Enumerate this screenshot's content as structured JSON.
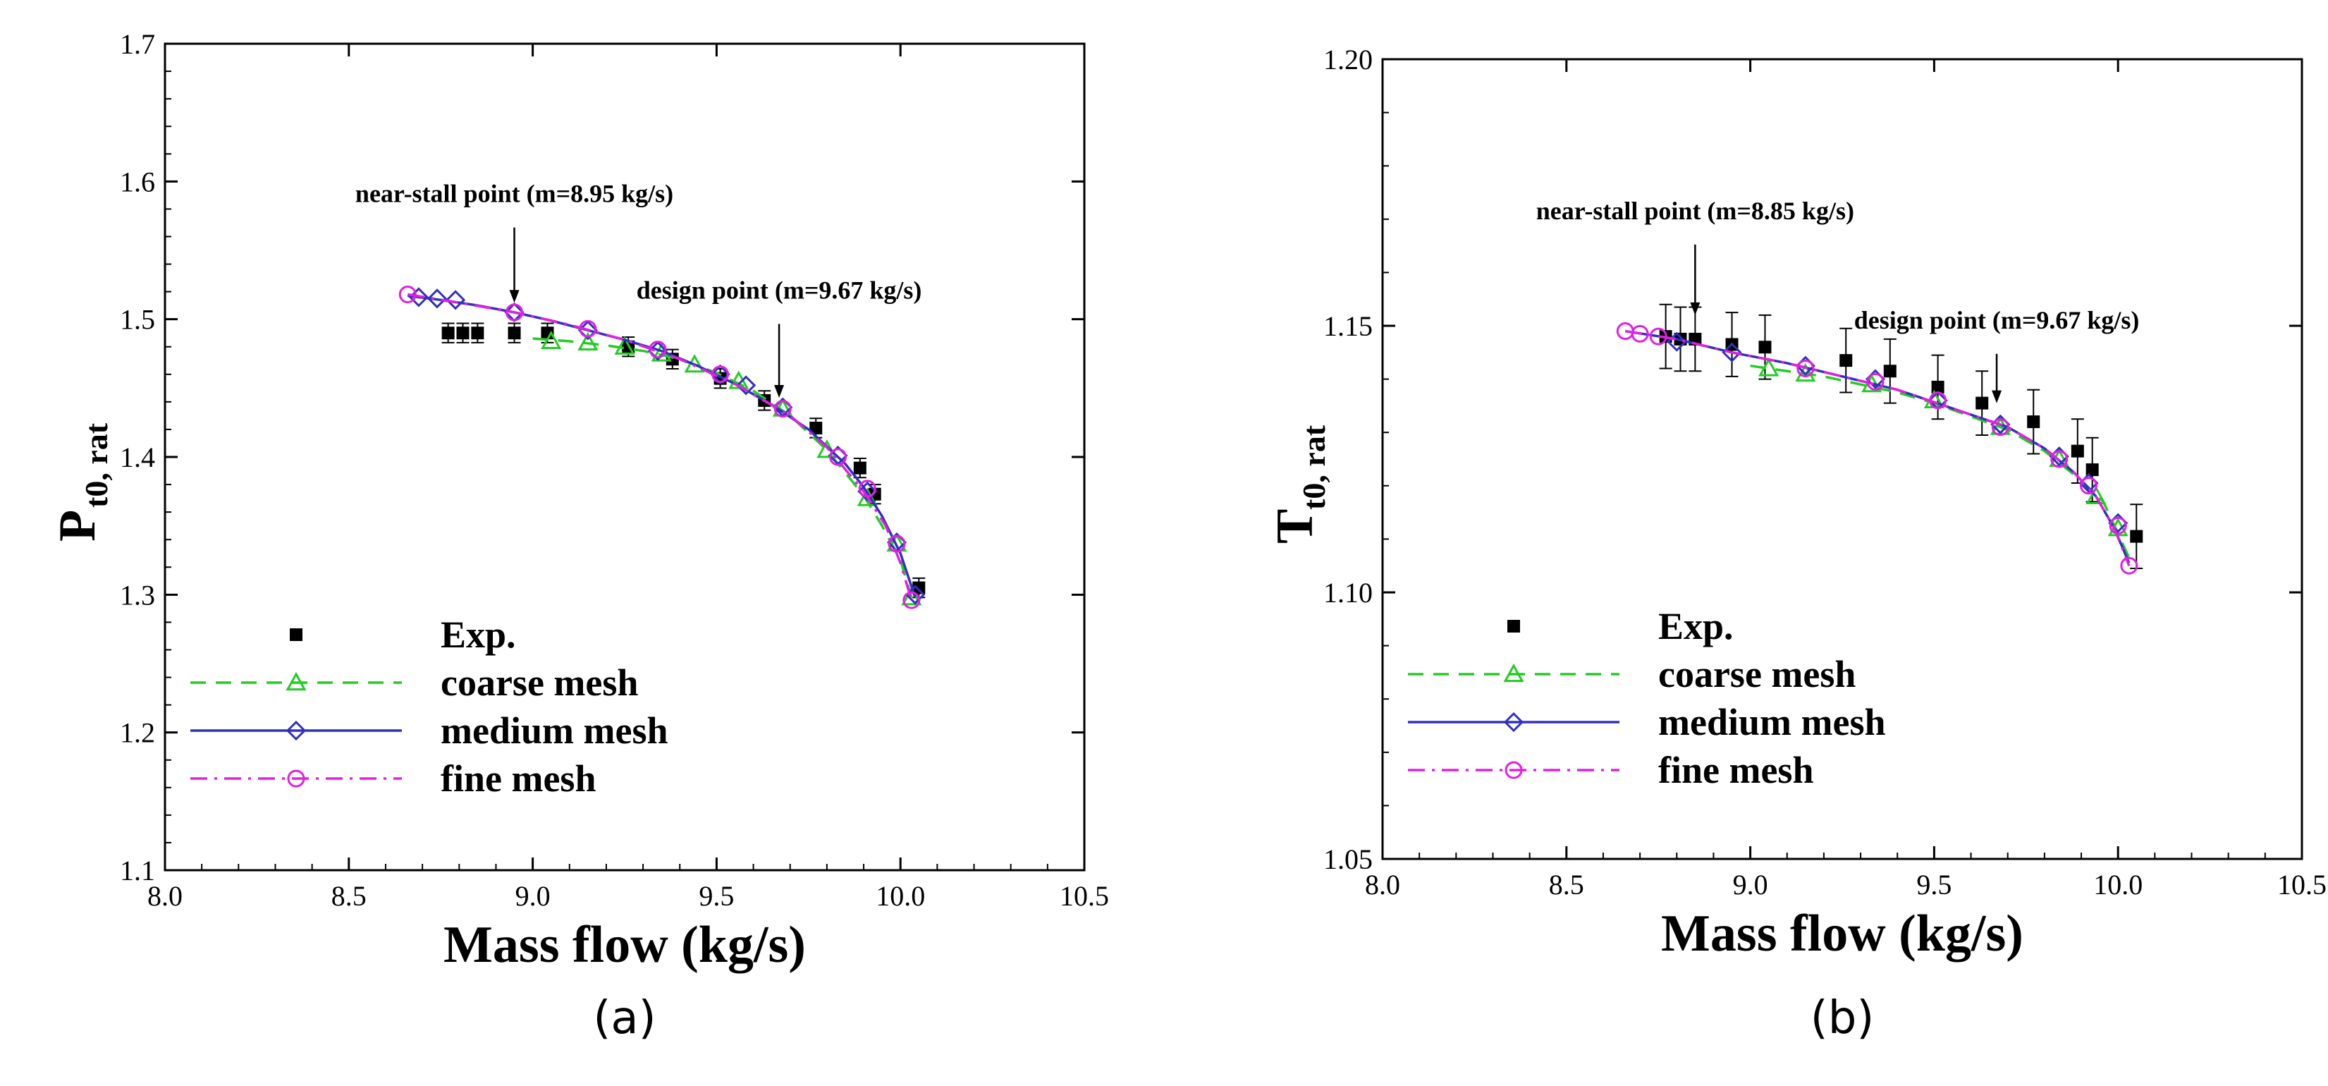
{
  "chart_data": [
    {
      "type": "line",
      "panel_label": "(a)",
      "title": "",
      "xlabel": "Mass flow (kg/s)",
      "ylabel_main": "P",
      "ylabel_sub": "t0, rat",
      "xlim": [
        8.0,
        10.5
      ],
      "ylim": [
        1.1,
        1.7
      ],
      "xticks": [
        8.0,
        8.5,
        9.0,
        9.5,
        10.0,
        10.5
      ],
      "xtick_labels": [
        "8.0",
        "8.5",
        "9.0",
        "9.5",
        "10.0",
        "10.5"
      ],
      "yticks": [
        1.1,
        1.2,
        1.3,
        1.4,
        1.5,
        1.6,
        1.7
      ],
      "ytick_labels": [
        "1.1",
        "1.2",
        "1.3",
        "1.4",
        "1.5",
        "1.6",
        "1.7"
      ],
      "grid": false,
      "legend_position": "lower-left",
      "annotations": [
        {
          "text": "near-stall point (m=8.95 kg/s)",
          "x": 8.95,
          "y": 1.505,
          "label_y": 1.585,
          "arrow_end": 1.512
        },
        {
          "text": "design point (m=9.67 kg/s)",
          "x": 9.67,
          "y": 1.436,
          "label_y": 1.515,
          "arrow_end": 1.443
        }
      ],
      "series": [
        {
          "name": "Exp.",
          "style": "marker",
          "color": "#000000",
          "x": [
            8.77,
            8.81,
            8.85,
            8.95,
            9.04,
            9.26,
            9.38,
            9.51,
            9.63,
            9.77,
            9.89,
            9.93,
            10.05
          ],
          "y": [
            1.49,
            1.49,
            1.49,
            1.49,
            1.49,
            1.48,
            1.471,
            1.457,
            1.441,
            1.421,
            1.392,
            1.373,
            1.305
          ],
          "err": [
            0.007,
            0.007,
            0.007,
            0.007,
            0.007,
            0.007,
            0.007,
            0.007,
            0.007,
            0.007,
            0.007,
            0.007,
            0.007
          ]
        },
        {
          "name": "coarse mesh",
          "style": "dash",
          "color": "#22cc22",
          "marker": "triangle",
          "x": [
            9.05,
            9.15,
            9.25,
            9.35,
            9.44,
            9.56,
            9.68,
            9.8,
            9.91,
            9.99,
            10.03
          ],
          "y": [
            1.484,
            1.483,
            1.48,
            1.475,
            1.467,
            1.455,
            1.435,
            1.405,
            1.37,
            1.337,
            1.298
          ],
          "curve_x": [
            9.0,
            9.1,
            9.2,
            9.3,
            9.4,
            9.5,
            9.6,
            9.7,
            9.8,
            9.9,
            9.95,
            10.0,
            10.03
          ],
          "curve_y": [
            1.486,
            1.484,
            1.481,
            1.477,
            1.471,
            1.461,
            1.448,
            1.43,
            1.405,
            1.372,
            1.35,
            1.325,
            1.298
          ]
        },
        {
          "name": "medium mesh",
          "style": "solid",
          "color": "#3030c0",
          "marker": "diamond",
          "x": [
            8.69,
            8.74,
            8.79,
            8.95,
            9.15,
            9.34,
            9.51,
            9.58,
            9.68,
            9.83,
            9.91,
            9.99,
            10.04
          ],
          "y": [
            1.516,
            1.515,
            1.514,
            1.505,
            1.492,
            1.477,
            1.46,
            1.452,
            1.436,
            1.401,
            1.375,
            1.338,
            1.3
          ],
          "curve_x": [
            8.66,
            8.75,
            8.85,
            8.95,
            9.05,
            9.15,
            9.25,
            9.35,
            9.45,
            9.55,
            9.65,
            9.75,
            9.85,
            9.9,
            9.95,
            10.0,
            10.04
          ],
          "curve_y": [
            1.517,
            1.514,
            1.51,
            1.505,
            1.499,
            1.492,
            1.485,
            1.477,
            1.466,
            1.453,
            1.438,
            1.42,
            1.395,
            1.378,
            1.357,
            1.33,
            1.298
          ]
        },
        {
          "name": "fine mesh",
          "style": "dashdot",
          "color": "#e020e0",
          "marker": "circle",
          "x": [
            8.66,
            8.95,
            9.15,
            9.34,
            9.51,
            9.68,
            9.83,
            9.91,
            9.99,
            10.03
          ],
          "y": [
            1.518,
            1.505,
            1.493,
            1.478,
            1.46,
            1.435,
            1.4,
            1.377,
            1.337,
            1.296
          ],
          "curve_x": [
            8.66,
            8.8,
            8.95,
            9.1,
            9.25,
            9.4,
            9.55,
            9.7,
            9.8,
            9.9,
            9.96,
            10.0,
            10.03
          ],
          "curve_y": [
            1.518,
            1.512,
            1.505,
            1.496,
            1.485,
            1.471,
            1.453,
            1.43,
            1.407,
            1.375,
            1.35,
            1.323,
            1.296
          ]
        }
      ]
    },
    {
      "type": "line",
      "panel_label": "(b)",
      "title": "",
      "xlabel": "Mass flow (kg/s)",
      "ylabel_main": "T",
      "ylabel_sub": "t0, rat",
      "xlim": [
        8.0,
        10.5
      ],
      "ylim": [
        1.05,
        1.2
      ],
      "xticks": [
        8.0,
        8.5,
        9.0,
        9.5,
        10.0,
        10.5
      ],
      "xtick_labels": [
        "8.0",
        "8.5",
        "9.0",
        "9.5",
        "10.0",
        "10.5"
      ],
      "yticks": [
        1.05,
        1.1,
        1.15,
        1.2
      ],
      "ytick_labels": [
        "1.05",
        "1.10",
        "1.15",
        "1.20"
      ],
      "grid": false,
      "legend_position": "lower-left",
      "annotations": [
        {
          "text": "near-stall point (m=8.85 kg/s)",
          "x": 8.85,
          "y": 1.148,
          "label_y": 1.17,
          "arrow_end": 1.152
        },
        {
          "text": "design point (m=9.67 kg/s)",
          "x": 9.67,
          "y": 1.131,
          "label_y": 1.1495,
          "arrow_end": 1.1355
        }
      ],
      "series": [
        {
          "name": "Exp.",
          "style": "marker",
          "color": "#000000",
          "x": [
            8.77,
            8.81,
            8.85,
            8.95,
            9.04,
            9.26,
            9.38,
            9.51,
            9.63,
            9.77,
            9.89,
            9.93,
            10.05
          ],
          "y": [
            1.148,
            1.1475,
            1.1475,
            1.1465,
            1.146,
            1.1435,
            1.1415,
            1.1385,
            1.1355,
            1.132,
            1.1265,
            1.123,
            1.1105
          ],
          "err": [
            0.006,
            0.006,
            0.006,
            0.006,
            0.006,
            0.006,
            0.006,
            0.006,
            0.006,
            0.006,
            0.006,
            0.006,
            0.006
          ]
        },
        {
          "name": "coarse mesh",
          "style": "dash",
          "color": "#22cc22",
          "marker": "triangle",
          "x": [
            9.05,
            9.15,
            9.33,
            9.5,
            9.68,
            9.84,
            9.94,
            10.0
          ],
          "y": [
            1.142,
            1.141,
            1.139,
            1.136,
            1.131,
            1.125,
            1.118,
            1.112
          ],
          "curve_x": [
            9.0,
            9.1,
            9.2,
            9.3,
            9.4,
            9.5,
            9.6,
            9.7,
            9.8,
            9.9,
            9.96,
            10.0,
            10.04
          ],
          "curve_y": [
            1.1425,
            1.1415,
            1.1405,
            1.139,
            1.1375,
            1.1355,
            1.133,
            1.1305,
            1.1265,
            1.121,
            1.117,
            1.111,
            1.105
          ]
        },
        {
          "name": "medium mesh",
          "style": "solid",
          "color": "#3030c0",
          "marker": "diamond",
          "x": [
            8.8,
            8.95,
            9.15,
            9.34,
            9.51,
            9.68,
            9.84,
            9.92,
            10.0
          ],
          "y": [
            1.147,
            1.145,
            1.1425,
            1.14,
            1.136,
            1.1315,
            1.1255,
            1.1205,
            1.113
          ],
          "curve_x": [
            8.66,
            8.8,
            8.95,
            9.1,
            9.25,
            9.4,
            9.55,
            9.7,
            9.8,
            9.88,
            9.94,
            9.99,
            10.03
          ],
          "curve_y": [
            1.149,
            1.1475,
            1.145,
            1.143,
            1.1405,
            1.138,
            1.1345,
            1.131,
            1.127,
            1.1225,
            1.118,
            1.112,
            1.1055
          ]
        },
        {
          "name": "fine mesh",
          "style": "dashdot",
          "color": "#e020e0",
          "marker": "circle",
          "x": [
            8.66,
            8.7,
            8.75,
            9.15,
            9.34,
            9.51,
            9.68,
            9.84,
            9.92,
            10.0,
            10.03
          ],
          "y": [
            1.149,
            1.1485,
            1.148,
            1.142,
            1.1395,
            1.136,
            1.131,
            1.125,
            1.12,
            1.1125,
            1.105
          ],
          "curve_x": [
            8.66,
            8.8,
            8.95,
            9.1,
            9.25,
            9.4,
            9.55,
            9.7,
            9.8,
            9.88,
            9.94,
            9.99,
            10.03
          ],
          "curve_y": [
            1.149,
            1.1475,
            1.145,
            1.143,
            1.1405,
            1.138,
            1.1345,
            1.131,
            1.127,
            1.1225,
            1.118,
            1.112,
            1.105
          ]
        }
      ]
    }
  ]
}
